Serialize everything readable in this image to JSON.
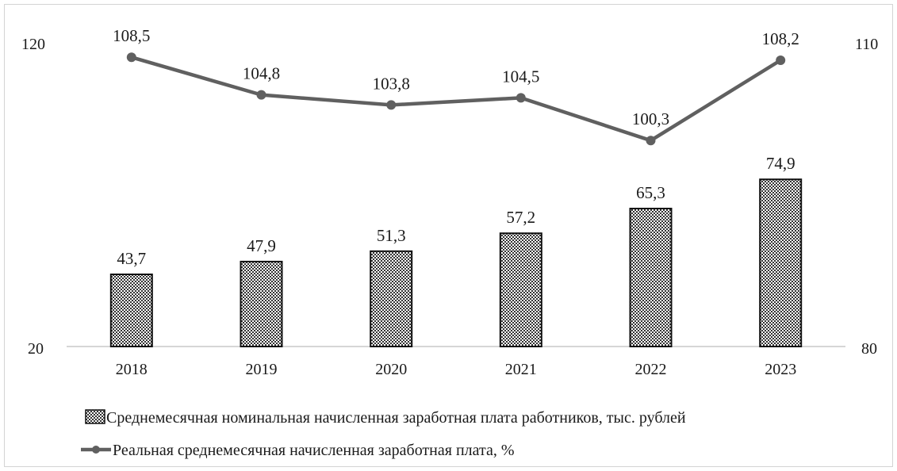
{
  "chart_data": {
    "type": "bar+line",
    "categories": [
      "2018",
      "2019",
      "2020",
      "2021",
      "2022",
      "2023"
    ],
    "series": [
      {
        "name": "Среднемесячная номинальная начисленная заработная плата работников, тыс. рублей",
        "type": "bar",
        "axis": "left",
        "values": [
          43.7,
          47.9,
          51.3,
          57.2,
          65.3,
          74.9
        ],
        "labels": [
          "43,7",
          "47,9",
          "51,3",
          "57,2",
          "65,3",
          "74,9"
        ],
        "color": "#111111"
      },
      {
        "name": "Реальная среднемесячная начисленная заработная плата, %",
        "type": "line",
        "axis": "right",
        "values": [
          108.5,
          104.8,
          103.8,
          104.5,
          100.3,
          108.2
        ],
        "labels": [
          "108,5",
          "104,8",
          "103,8",
          "104,5",
          "100,3",
          "108,2"
        ],
        "color": "#606060"
      }
    ],
    "y_left": {
      "min": 20,
      "max": 120,
      "ticks": [
        "20",
        "120"
      ]
    },
    "y_right": {
      "min": 80,
      "max": 110,
      "ticks": [
        "80",
        "110"
      ]
    },
    "legend_position": "bottom",
    "grid": false
  }
}
